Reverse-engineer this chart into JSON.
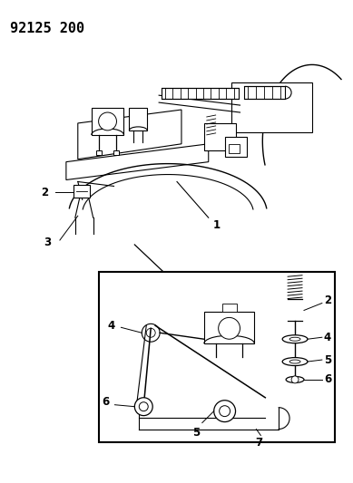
{
  "title_text": "92125 200",
  "background_color": "#ffffff",
  "text_color": "#000000",
  "line_color": "#000000",
  "figsize": [
    3.89,
    5.33
  ],
  "dpi": 100,
  "label_fontsize": 8.5
}
